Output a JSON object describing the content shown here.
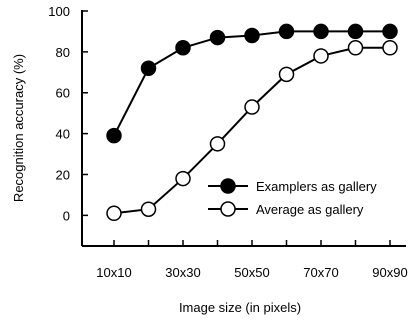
{
  "chart_data": {
    "type": "line",
    "categories": [
      "10x10",
      "20x20",
      "30x30",
      "40x40",
      "50x50",
      "60x60",
      "70x70",
      "80x80",
      "90x90"
    ],
    "x_tick_labels": [
      "10x10",
      "30x30",
      "50x50",
      "70x70",
      "90x90"
    ],
    "xlabel": "Image size (in pixels)",
    "ylabel": "Recognition accuracy (%)",
    "ylim": [
      -15,
      100
    ],
    "yticks": [
      0,
      20,
      40,
      60,
      80,
      100
    ],
    "grid": false,
    "legend_position": "bottom-right",
    "series": [
      {
        "name": "Examplers as gallery",
        "marker": "filled-circle",
        "color": "#000000",
        "values": [
          39,
          72,
          82,
          87,
          88,
          90,
          90,
          90,
          90
        ]
      },
      {
        "name": "Average as gallery",
        "marker": "open-circle",
        "color": "#000000",
        "values": [
          1,
          3,
          18,
          35,
          53,
          69,
          78,
          82,
          82
        ]
      }
    ]
  }
}
